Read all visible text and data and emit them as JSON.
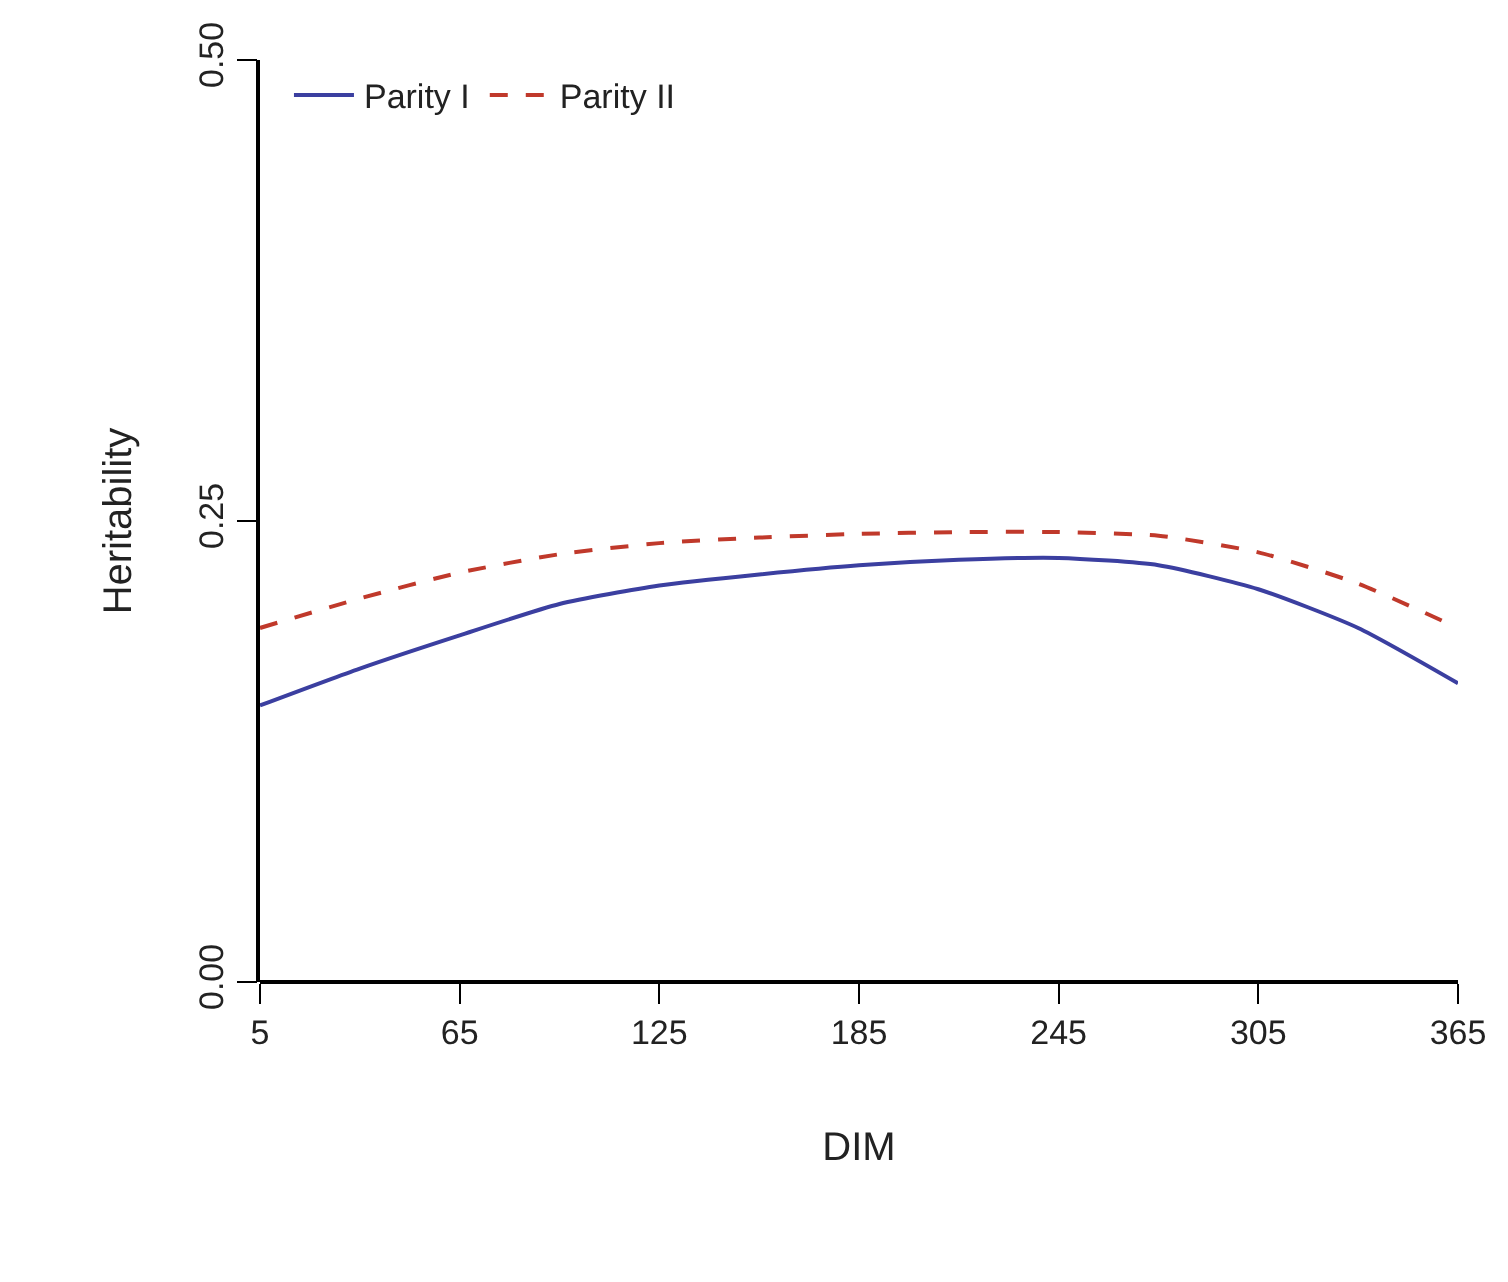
{
  "chart_data": {
    "type": "line",
    "xlabel": "DIM",
    "ylabel": "Heritability",
    "x": [
      5,
      35,
      65,
      95,
      125,
      155,
      185,
      215,
      245,
      275,
      305,
      335,
      365
    ],
    "series": [
      {
        "name": "Parity I",
        "color": "#3b3fa0",
        "line_style": "solid",
        "values": [
          0.15,
          0.17,
          0.188,
          0.205,
          0.215,
          0.221,
          0.226,
          0.229,
          0.23,
          0.226,
          0.213,
          0.192,
          0.162
        ]
      },
      {
        "name": "Parity II",
        "color": "#c0392b",
        "line_style": "dashed",
        "values": [
          0.192,
          0.208,
          0.222,
          0.232,
          0.238,
          0.241,
          0.243,
          0.244,
          0.244,
          0.242,
          0.233,
          0.216,
          0.192
        ]
      }
    ],
    "xlim": [
      5,
      365
    ],
    "xticks": [
      5,
      65,
      125,
      185,
      245,
      305,
      365
    ],
    "ylim": [
      0,
      0.5
    ],
    "yticks": [
      {
        "value": 0,
        "label": "0.00"
      },
      {
        "value": 0.25,
        "label": "0.25"
      },
      {
        "value": 0.5,
        "label": "0.50"
      }
    ],
    "grid": false,
    "legend": "top left",
    "marker": "none"
  }
}
